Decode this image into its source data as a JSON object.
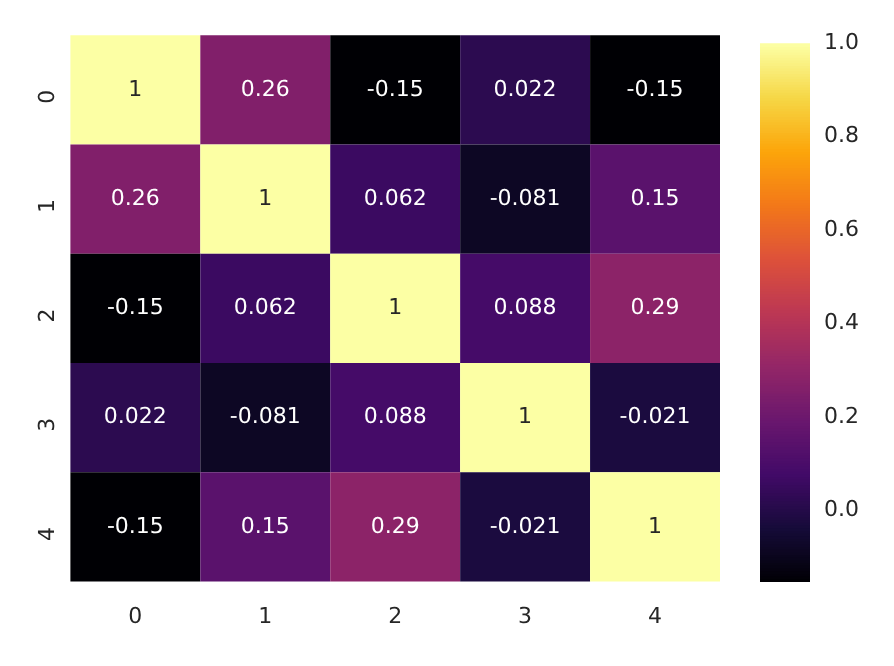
{
  "chart_data": {
    "type": "heatmap",
    "categories": [
      "0",
      "1",
      "2",
      "3",
      "4"
    ],
    "y_categories": [
      "0",
      "1",
      "2",
      "3",
      "4"
    ],
    "cells": [
      [
        1,
        0.26,
        -0.15,
        0.022,
        -0.15
      ],
      [
        0.26,
        1,
        0.062,
        -0.081,
        0.15
      ],
      [
        -0.15,
        0.062,
        1,
        0.088,
        0.29
      ],
      [
        0.022,
        -0.081,
        0.088,
        1,
        -0.021
      ],
      [
        -0.15,
        0.15,
        0.29,
        -0.021,
        1
      ]
    ],
    "data_labels": true,
    "clim": [
      -0.15,
      1.0
    ],
    "cticks": [
      {
        "value": 0,
        "label": "0.0"
      },
      {
        "value": 0.2,
        "label": "0.2"
      },
      {
        "value": 0.4,
        "label": "0.4"
      },
      {
        "value": 0.6,
        "label": "0.6"
      },
      {
        "value": 0.8,
        "label": "0.8"
      },
      {
        "value": 1.0,
        "label": "1.0"
      }
    ]
  }
}
